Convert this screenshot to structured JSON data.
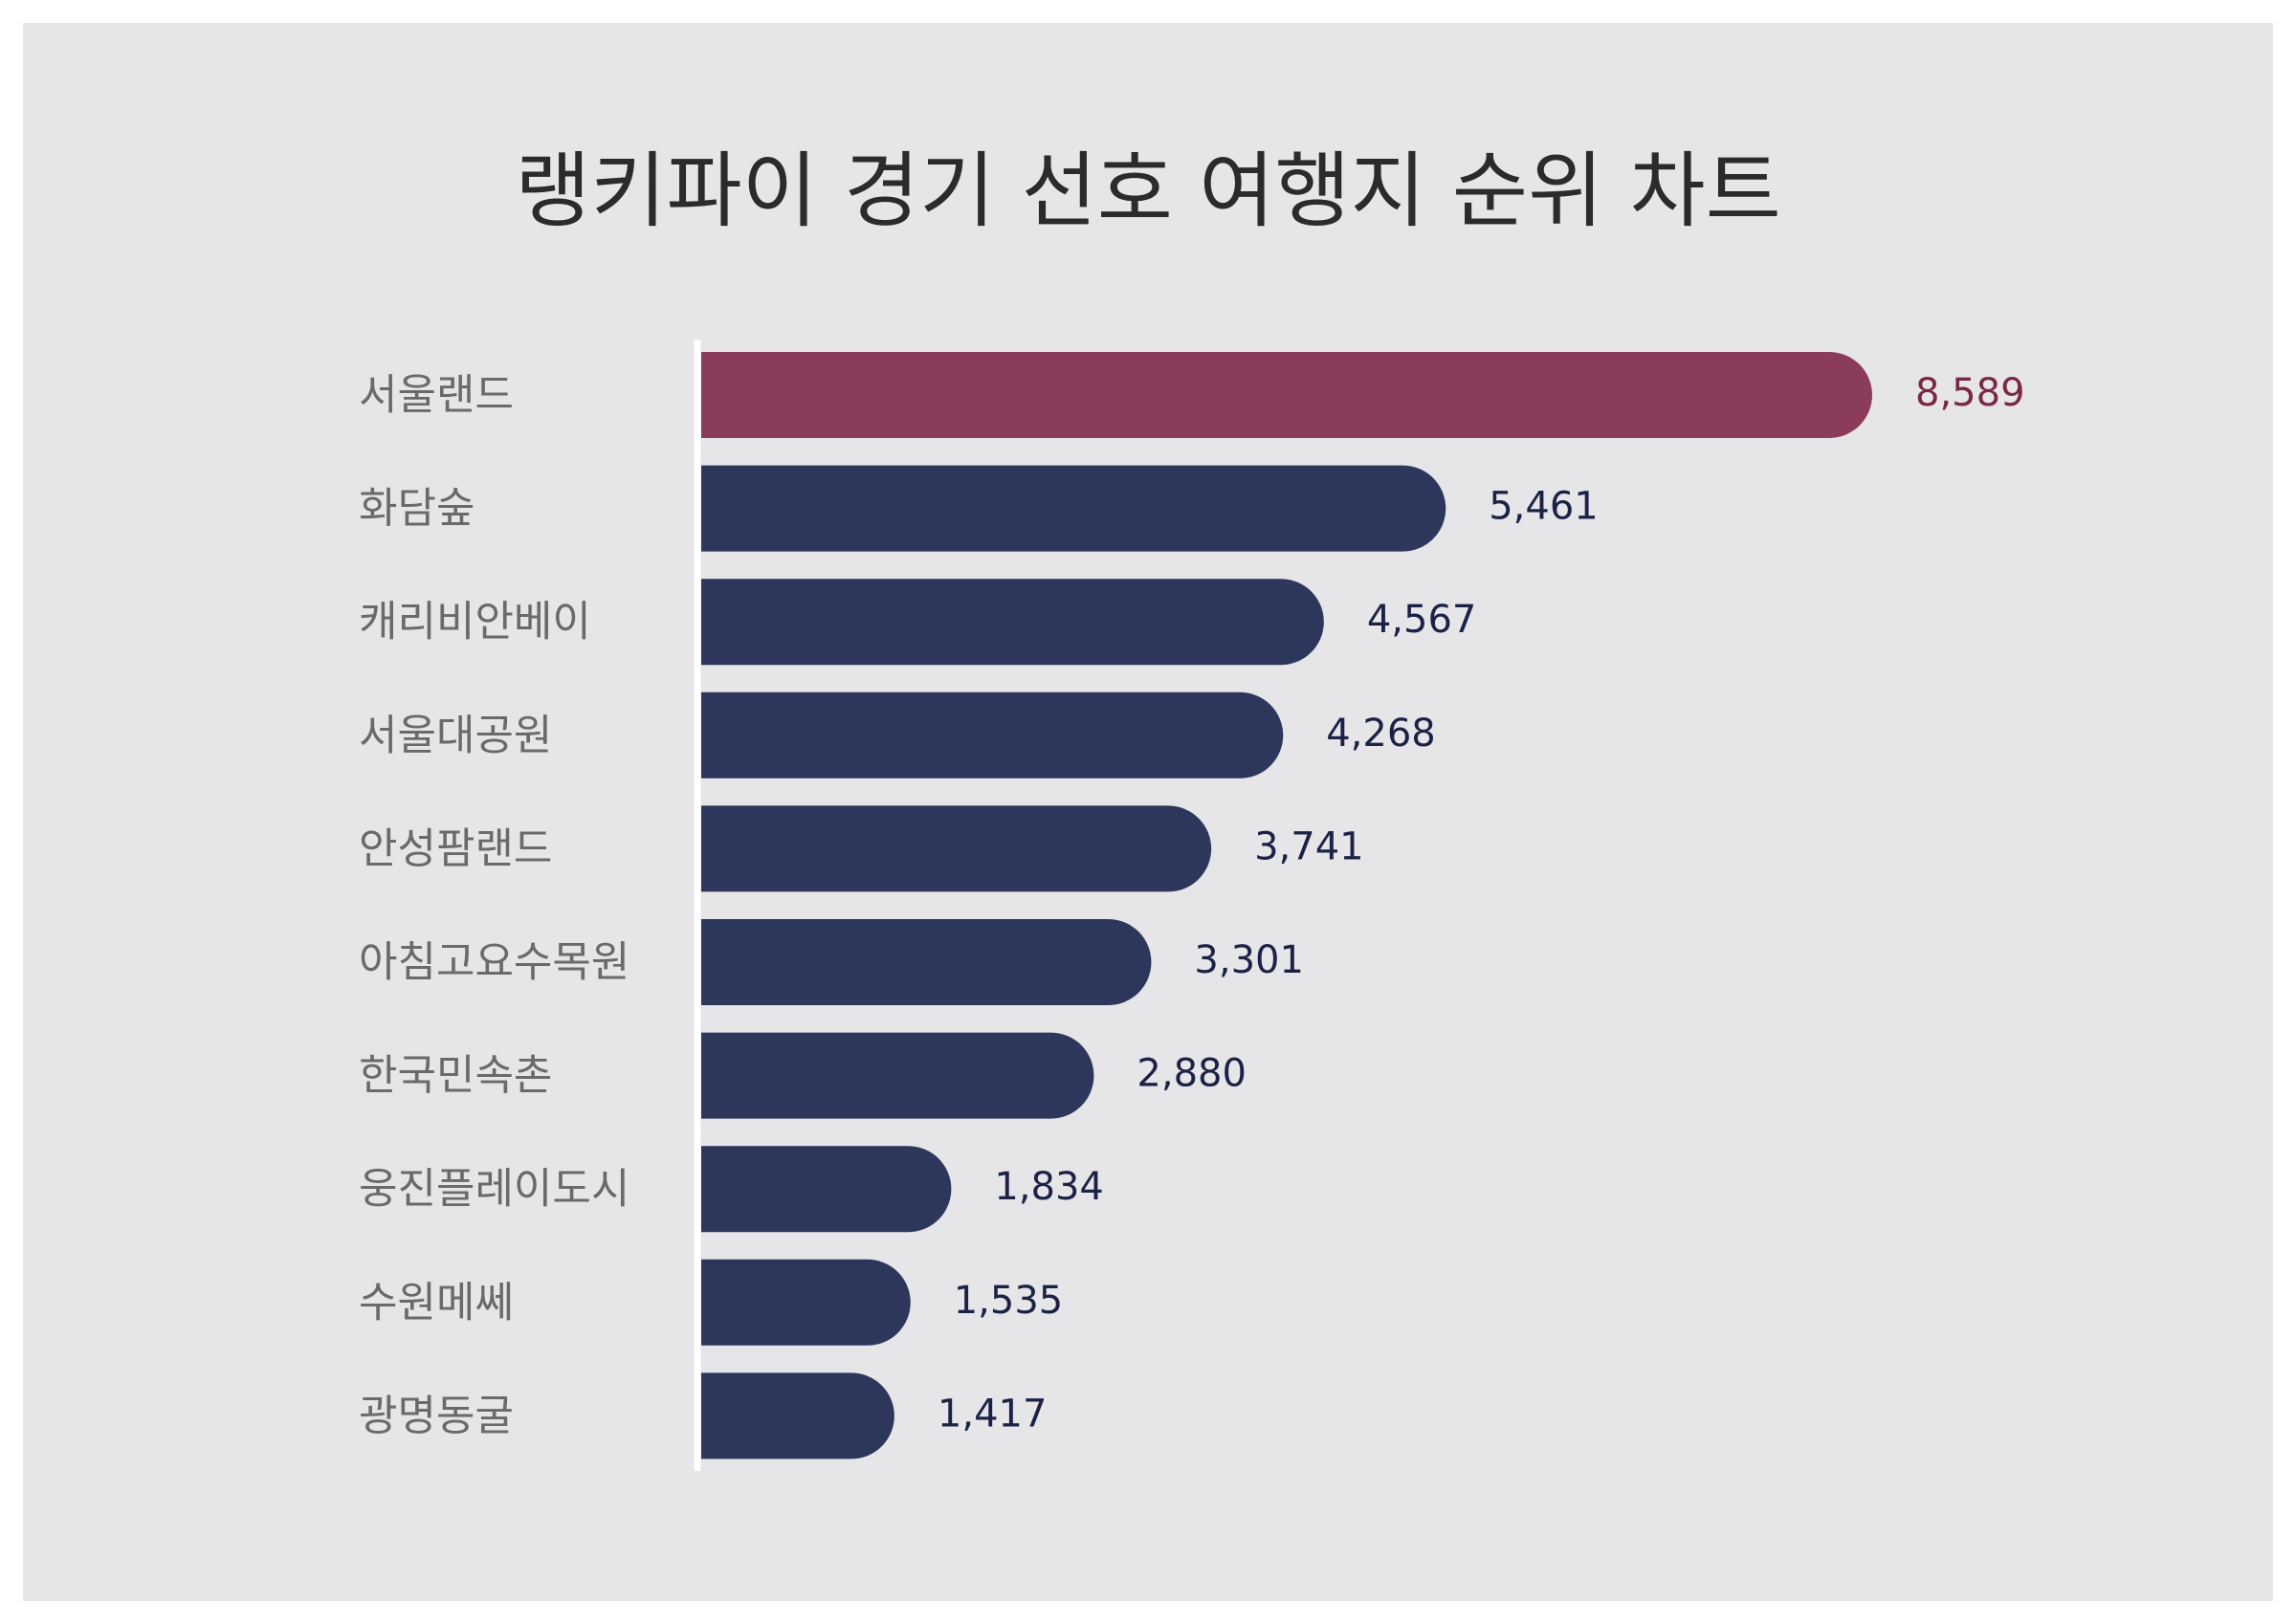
{
  "chart_data": {
    "type": "bar",
    "orientation": "horizontal",
    "title": "랭키파이 경기 선호 여행지 순위 차트",
    "categories": [
      "서울랜드",
      "화담숲",
      "캐리비안베이",
      "서울대공원",
      "안성팜랜드",
      "아침고요수목원",
      "한국민속촌",
      "웅진플레이도시",
      "수원메쎄",
      "광명동굴"
    ],
    "values": [
      8589,
      5461,
      4567,
      4268,
      3741,
      3301,
      2880,
      1834,
      1535,
      1417
    ],
    "value_labels": [
      "8,589",
      "5,461",
      "4,567",
      "4,268",
      "3,741",
      "3,301",
      "2,880",
      "1,834",
      "1,535",
      "1,417"
    ],
    "xlim": [
      0,
      8589
    ],
    "grid": false,
    "legend": "none",
    "colors": {
      "highlight": "#8b3c5a",
      "default": "#2d375b",
      "highlight_label": "#7a2845",
      "default_label": "#1b2246",
      "background": "#e6e5e7",
      "axis_line": "#ffffff"
    }
  }
}
